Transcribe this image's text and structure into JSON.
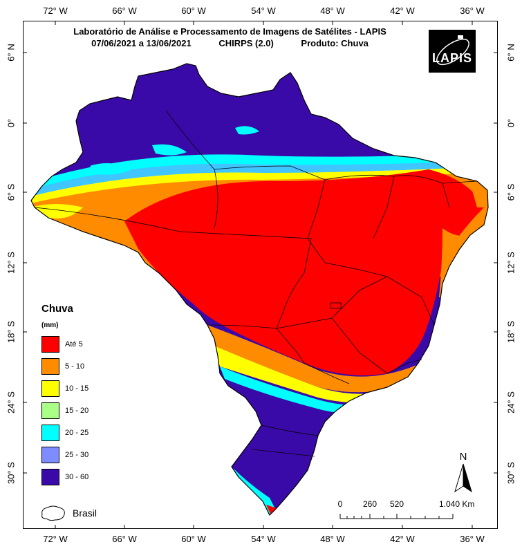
{
  "map": {
    "title_line1": "Laboratório de Análise e Processamento de Imagens de Satélites - LAPIS",
    "date_range": "07/06/2021  a 13/06/2021",
    "dataset": "CHIRPS (2.0)",
    "product": "Produto: Chuva",
    "logo_text": "LAPIS"
  },
  "axes": {
    "longitude_labels": [
      "72° W",
      "66° W",
      "60° W",
      "54° W",
      "48° W",
      "42° W",
      "36° W"
    ],
    "latitude_labels": [
      "6° N",
      "0°",
      "6° S",
      "12° S",
      "18° S",
      "24° S",
      "30° S"
    ]
  },
  "legend": {
    "title": "Chuva",
    "unit": "(mm)",
    "classes": [
      {
        "label": "Até 5",
        "color": "#ff0000"
      },
      {
        "label": "5 - 10",
        "color": "#ff8c00"
      },
      {
        "label": "10 - 15",
        "color": "#ffff00"
      },
      {
        "label": "15 - 20",
        "color": "#aaff88"
      },
      {
        "label": "20 - 25",
        "color": "#00ffff"
      },
      {
        "label": "25 - 30",
        "color": "#7f8cff"
      },
      {
        "label": "30 - 60",
        "color": "#3a0aa8"
      }
    ],
    "boundary_label": "Brasil"
  },
  "scale": {
    "ticks": [
      "0",
      "260",
      "520",
      "1.040 Km"
    ]
  },
  "north": {
    "label": "N"
  }
}
